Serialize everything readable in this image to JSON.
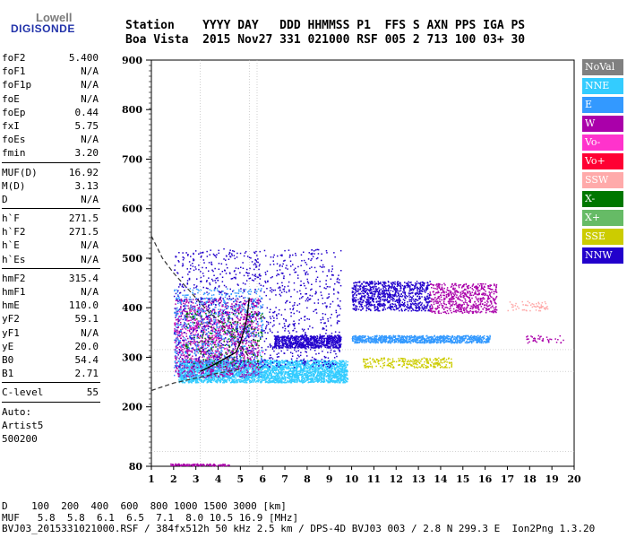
{
  "logo": {
    "line1": "Lowell",
    "line2": "DIGISONDE"
  },
  "header": {
    "row1": "Station    YYYY DAY   DDD HHMMSS P1  FFS S AXN PPS IGA PS",
    "row2": "Boa Vista  2015 Nov27 331 021000 RSF 005 2 713 100 03+ 30"
  },
  "params": [
    {
      "label": "foF2",
      "value": "5.400"
    },
    {
      "label": "foF1",
      "value": "N/A"
    },
    {
      "label": "foF1p",
      "value": "N/A"
    },
    {
      "label": "foE",
      "value": "N/A"
    },
    {
      "label": "foEp",
      "value": "0.44"
    },
    {
      "label": "fxI",
      "value": "5.75"
    },
    {
      "label": "foEs",
      "value": "N/A"
    },
    {
      "label": "fmin",
      "value": "3.20"
    },
    {
      "sep": true
    },
    {
      "label": "MUF(D)",
      "value": "16.92"
    },
    {
      "label": "M(D)",
      "value": "3.13"
    },
    {
      "label": "D",
      "value": "N/A"
    },
    {
      "sep": true
    },
    {
      "label": "h`F",
      "value": "271.5"
    },
    {
      "label": "h`F2",
      "value": "271.5"
    },
    {
      "label": "h`E",
      "value": "N/A"
    },
    {
      "label": "h`Es",
      "value": "N/A"
    },
    {
      "sep": true
    },
    {
      "label": "hmF2",
      "value": "315.4"
    },
    {
      "label": "hmF1",
      "value": "N/A"
    },
    {
      "label": "hmE",
      "value": "110.0"
    },
    {
      "label": "yF2",
      "value": "59.1"
    },
    {
      "label": "yF1",
      "value": "N/A"
    },
    {
      "label": "yE",
      "value": "20.0"
    },
    {
      "label": "B0",
      "value": "54.4"
    },
    {
      "label": "B1",
      "value": "2.71"
    },
    {
      "sep": true
    },
    {
      "label": "C-level",
      "value": "55"
    },
    {
      "sep": true
    },
    {
      "label": "Auto:",
      "value": ""
    },
    {
      "label": "Artist5",
      "value": ""
    },
    {
      "label": "500200",
      "value": ""
    }
  ],
  "legend": [
    {
      "label": "NoVal",
      "color": "#808080"
    },
    {
      "label": "NNE",
      "color": "#33ccff"
    },
    {
      "label": "E",
      "color": "#3399ff"
    },
    {
      "label": "W",
      "color": "#aa00aa"
    },
    {
      "label": "Vo-",
      "color": "#ff33cc"
    },
    {
      "label": "Vo+",
      "color": "#ff0033"
    },
    {
      "label": "SSW",
      "color": "#ffaaaa"
    },
    {
      "label": "X-",
      "color": "#007700"
    },
    {
      "label": "X+",
      "color": "#66bb66"
    },
    {
      "label": "SSE",
      "color": "#cccc00"
    },
    {
      "label": "NNW",
      "color": "#2200cc"
    }
  ],
  "chart_data": {
    "type": "scatter",
    "xlim": [
      1,
      20
    ],
    "ylim": [
      80,
      900
    ],
    "x_ticks": [
      1,
      2,
      3,
      4,
      5,
      6,
      7,
      8,
      9,
      10,
      11,
      12,
      13,
      14,
      15,
      16,
      17,
      18,
      19,
      20
    ],
    "y_ticks": [
      80,
      200,
      300,
      400,
      500,
      600,
      700,
      800,
      900
    ],
    "grid_x": [
      3.2,
      5.4,
      5.75
    ],
    "grid_y": [
      110,
      271.5,
      315.4
    ],
    "clusters": [
      {
        "name": "NNE",
        "color": "#33ccff",
        "x": [
          2.2,
          9.8
        ],
        "y": [
          250,
          295
        ],
        "density": 3200
      },
      {
        "name": "E",
        "color": "#3399ff",
        "x": [
          10.0,
          16.2
        ],
        "y": [
          330,
          345
        ],
        "density": 900
      },
      {
        "name": "NNW",
        "color": "#2200cc",
        "x": [
          6.5,
          9.5
        ],
        "y": [
          320,
          345
        ],
        "density": 700
      },
      {
        "name": "NNW",
        "color": "#2200cc",
        "x": [
          10.0,
          13.5
        ],
        "y": [
          395,
          455
        ],
        "density": 900
      },
      {
        "name": "W",
        "color": "#aa00aa",
        "x": [
          13.5,
          16.5
        ],
        "y": [
          390,
          450
        ],
        "density": 600
      },
      {
        "name": "SSE",
        "color": "#cccc00",
        "x": [
          10.5,
          14.5
        ],
        "y": [
          280,
          300
        ],
        "density": 250
      },
      {
        "name": "SSW",
        "color": "#ffaaaa",
        "x": [
          17.0,
          18.8
        ],
        "y": [
          395,
          415
        ],
        "density": 60
      },
      {
        "name": "W",
        "color": "#aa00aa",
        "x": [
          17.8,
          19.5
        ],
        "y": [
          330,
          345
        ],
        "density": 40
      },
      {
        "name": "W",
        "color": "#aa00aa",
        "x": [
          2.0,
          5.8
        ],
        "y": [
          260,
          420
        ],
        "density": 1300
      },
      {
        "name": "NNW",
        "color": "#2200cc",
        "x": [
          2.0,
          9.5
        ],
        "y": [
          280,
          520
        ],
        "density": 1200
      },
      {
        "name": "E",
        "color": "#3399ff",
        "x": [
          2.0,
          6.0
        ],
        "y": [
          260,
          440
        ],
        "density": 700
      },
      {
        "name": "X-",
        "color": "#007700",
        "x": [
          2.5,
          6.0
        ],
        "y": [
          280,
          400
        ],
        "density": 200
      },
      {
        "name": "Vo-",
        "color": "#ff33cc",
        "x": [
          2.0,
          6.0
        ],
        "y": [
          270,
          400
        ],
        "density": 120
      },
      {
        "name": "W",
        "color": "#aa00aa",
        "x": [
          1.8,
          4.5
        ],
        "y": [
          82,
          86
        ],
        "density": 120
      }
    ],
    "profile_dashed": {
      "x": [
        1.0,
        1.5,
        2.0,
        2.5,
        3.0,
        3.5,
        4.0,
        4.5,
        5.0,
        5.4
      ],
      "y": [
        545,
        500,
        470,
        445,
        420,
        395,
        375,
        350,
        325,
        300
      ]
    },
    "profile_solid": {
      "x": [
        3.2,
        3.6,
        4.0,
        4.4,
        4.8,
        5.0,
        5.2,
        5.3,
        5.4
      ],
      "y": [
        271.5,
        280,
        290,
        300,
        310,
        330,
        360,
        380,
        420
      ]
    },
    "profile_bottom": {
      "x": [
        1.0,
        2.0,
        3.0,
        4.0,
        5.0
      ],
      "y": [
        233,
        248,
        258,
        268,
        276
      ]
    }
  },
  "footer": {
    "row1": "D    100  200  400  600  800 1000 1500 3000 [km]",
    "row2": "MUF   5.8  5.8  6.1  6.5  7.1  8.0 10.5 16.9 [MHz]",
    "row3": "BVJ03_2015331021000.RSF / 384fx512h 50 kHz 2.5 km / DPS-4D BVJ03 003 / 2.8 N 299.3 E  Ion2Png 1.3.20"
  }
}
